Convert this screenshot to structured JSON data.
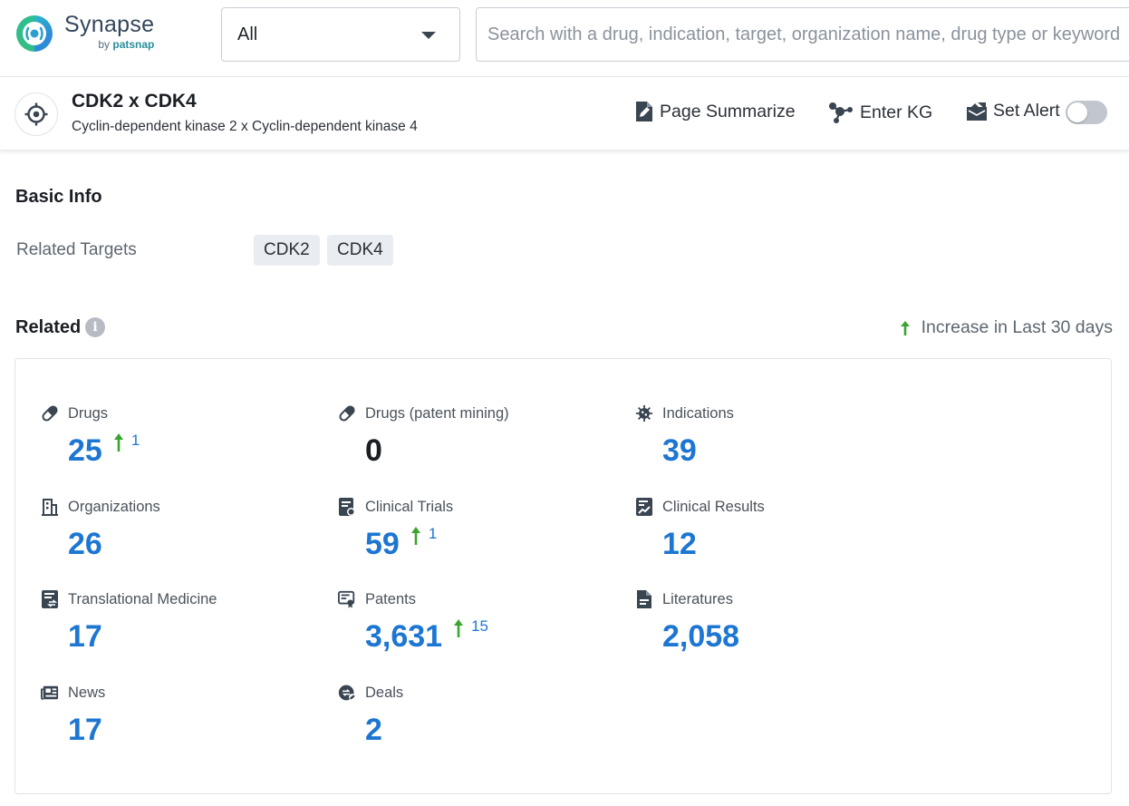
{
  "brand": {
    "name": "Synapse",
    "by": "by",
    "by_brand": "patsnap"
  },
  "search": {
    "scope_value": "All",
    "placeholder": "Search with a drug, indication, target, organization name, drug type or keyword"
  },
  "target": {
    "title": "CDK2 x CDK4",
    "subtitle": "Cyclin-dependent kinase 2 x Cyclin-dependent kinase 4",
    "actions": {
      "summarize": "Page Summarize",
      "kg": "Enter KG",
      "alert": "Set Alert"
    },
    "alert_enabled": false
  },
  "basic_info": {
    "title": "Basic Info",
    "related_targets_label": "Related Targets",
    "related_targets": [
      "CDK2",
      "CDK4"
    ]
  },
  "related": {
    "title": "Related",
    "info_glyph": "i",
    "legend": "Increase in Last 30 days",
    "colors": {
      "value": "#1c76d2",
      "increase": "#3aa52e"
    },
    "stats": [
      {
        "label": "Drugs",
        "icon": "pill-icon",
        "value": "25",
        "increase": "1"
      },
      {
        "label": "Drugs (patent mining)",
        "icon": "pill-icon",
        "value": "0",
        "increase": ""
      },
      {
        "label": "Indications",
        "icon": "virus-icon",
        "value": "39",
        "increase": ""
      },
      {
        "label": "Organizations",
        "icon": "building-icon",
        "value": "26",
        "increase": ""
      },
      {
        "label": "Clinical Trials",
        "icon": "clipboard-icon",
        "value": "59",
        "increase": "1"
      },
      {
        "label": "Clinical Results",
        "icon": "chart-doc-icon",
        "value": "12",
        "increase": ""
      },
      {
        "label": "Translational Medicine",
        "icon": "translational-doc-icon",
        "value": "17",
        "increase": ""
      },
      {
        "label": "Patents",
        "icon": "certificate-icon",
        "value": "3,631",
        "increase": "15"
      },
      {
        "label": "Literatures",
        "icon": "document-icon",
        "value": "2,058",
        "increase": ""
      },
      {
        "label": "News",
        "icon": "newspaper-icon",
        "value": "17",
        "increase": ""
      },
      {
        "label": "Deals",
        "icon": "handshake-icon",
        "value": "2",
        "increase": ""
      }
    ]
  }
}
